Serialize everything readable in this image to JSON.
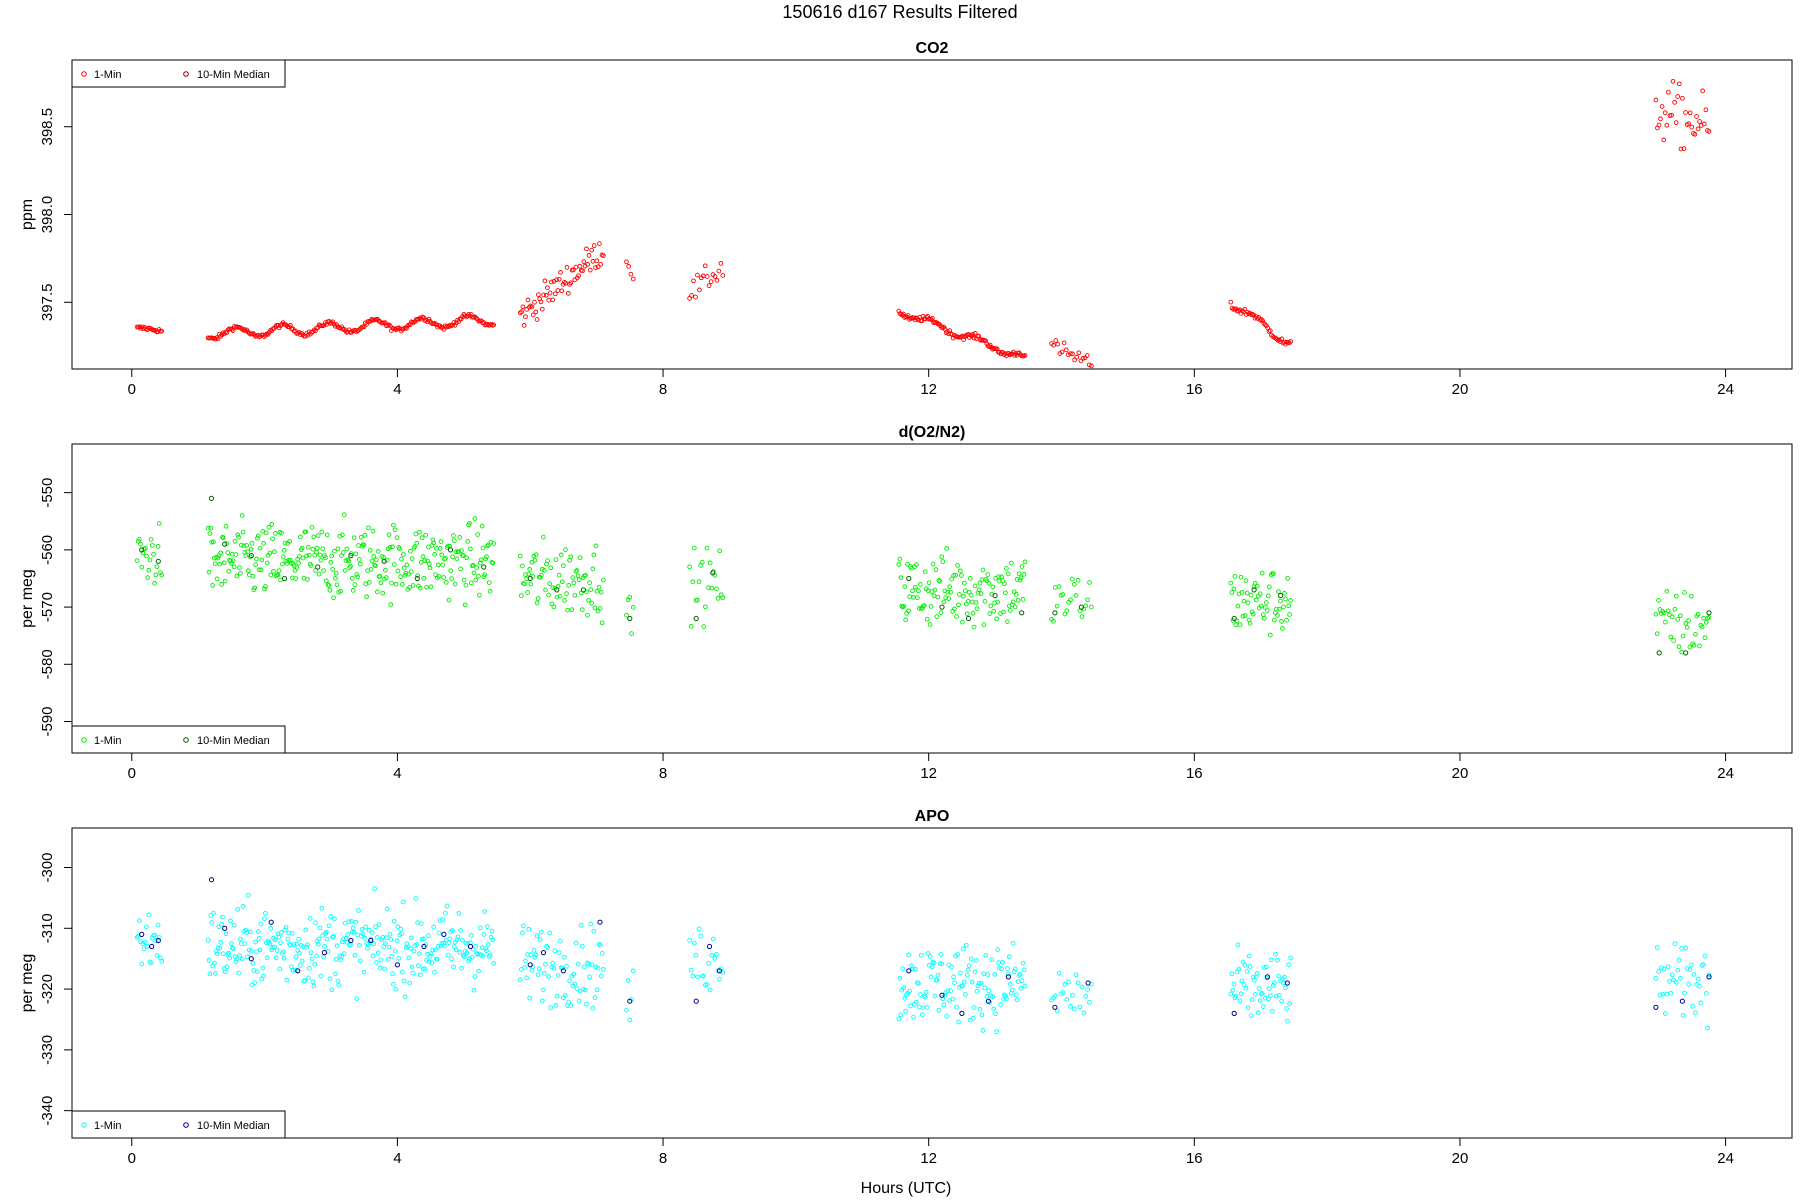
{
  "header": {
    "title": "150616   d167   Results Filtered"
  },
  "xaxis": {
    "label": "Hours (UTC)",
    "ticks": [
      0,
      4,
      8,
      12,
      16,
      20,
      24
    ],
    "range": [
      -0.9,
      25.0
    ]
  },
  "legend": {
    "label_1min": "1-Min",
    "label_median": "10-Min Median"
  },
  "chart_data": [
    {
      "type": "scatter",
      "title": "CO2",
      "ylabel": "ppm",
      "ylim": [
        397.12,
        398.88
      ],
      "yticks": [
        397.5,
        398.0,
        398.5
      ],
      "ytick_labels": [
        "397.5",
        "398.0",
        "398.5"
      ],
      "colors": {
        "one_min": "#ff0000",
        "median": "#8b0000"
      },
      "segments": [
        {
          "x": [
            0.08,
            0.45
          ],
          "y": [
            397.35,
            397.34
          ],
          "n": 20,
          "noise": 0.01,
          "wave": 0.005
        },
        {
          "x": [
            1.15,
            5.45
          ],
          "y": [
            397.32,
            397.4
          ],
          "n": 230,
          "noise": 0.01,
          "wave": 0.03
        },
        {
          "x": [
            5.85,
            7.1
          ],
          "y": [
            397.42,
            397.8
          ],
          "n": 65,
          "noise": 0.07,
          "wave": 0.0
        },
        {
          "x": [
            7.45,
            7.55
          ],
          "y": [
            397.73,
            397.65
          ],
          "n": 4,
          "noise": 0.02,
          "wave": 0.0
        },
        {
          "x": [
            8.4,
            8.9
          ],
          "y": [
            397.55,
            397.7
          ],
          "n": 18,
          "noise": 0.06,
          "wave": 0.0
        },
        {
          "x": [
            11.55,
            13.45
          ],
          "y": [
            397.45,
            397.18
          ],
          "n": 110,
          "noise": 0.012,
          "wave": 0.02
        },
        {
          "x": [
            13.85,
            14.45
          ],
          "y": [
            397.25,
            397.15
          ],
          "n": 20,
          "noise": 0.04,
          "wave": 0.0
        },
        {
          "x": [
            16.55,
            17.45
          ],
          "y": [
            397.5,
            397.26
          ],
          "n": 48,
          "noise": 0.015,
          "wave": 0.02
        },
        {
          "x": [
            22.95,
            23.75
          ],
          "y": [
            398.6,
            398.5
          ],
          "n": 35,
          "noise": 0.15,
          "wave": 0.0
        }
      ],
      "medians": []
    },
    {
      "type": "scatter",
      "title": "d(O2/N2)",
      "ylabel": "per meg",
      "ylim": [
        -595.5,
        -541.5
      ],
      "yticks": [
        -590,
        -580,
        -570,
        -560,
        -550
      ],
      "ytick_labels": [
        "-590",
        "-580",
        "-570",
        "-560",
        "-550"
      ],
      "colors": {
        "one_min": "#00ee00",
        "median": "#006400"
      },
      "segments": [
        {
          "x": [
            0.08,
            0.45
          ],
          "y": [
            -561,
            -561
          ],
          "n": 22,
          "noise": 4.5,
          "wave": 0
        },
        {
          "x": [
            1.15,
            5.45
          ],
          "y": [
            -562,
            -562
          ],
          "n": 320,
          "noise": 5.5,
          "wave": 0
        },
        {
          "x": [
            5.85,
            7.1
          ],
          "y": [
            -565,
            -565
          ],
          "n": 80,
          "noise": 5.5,
          "wave": 0
        },
        {
          "x": [
            7.45,
            7.55
          ],
          "y": [
            -572,
            -572
          ],
          "n": 5,
          "noise": 4,
          "wave": 0
        },
        {
          "x": [
            8.4,
            8.9
          ],
          "y": [
            -566,
            -566
          ],
          "n": 22,
          "noise": 5,
          "wave": 0
        },
        {
          "x": [
            11.55,
            13.45
          ],
          "y": [
            -567,
            -567
          ],
          "n": 130,
          "noise": 5.5,
          "wave": 0
        },
        {
          "x": [
            13.85,
            14.45
          ],
          "y": [
            -569,
            -569
          ],
          "n": 22,
          "noise": 4.5,
          "wave": 0
        },
        {
          "x": [
            16.55,
            17.45
          ],
          "y": [
            -569,
            -569
          ],
          "n": 60,
          "noise": 5,
          "wave": 0
        },
        {
          "x": [
            22.95,
            23.75
          ],
          "y": [
            -573,
            -573
          ],
          "n": 40,
          "noise": 5,
          "wave": 0
        }
      ],
      "medians": [
        {
          "x": 0.15,
          "y": -560
        },
        {
          "x": 0.4,
          "y": -562
        },
        {
          "x": 1.2,
          "y": -551
        },
        {
          "x": 1.4,
          "y": -559
        },
        {
          "x": 1.8,
          "y": -561
        },
        {
          "x": 2.3,
          "y": -565
        },
        {
          "x": 2.8,
          "y": -563
        },
        {
          "x": 3.3,
          "y": -561
        },
        {
          "x": 3.8,
          "y": -562
        },
        {
          "x": 4.3,
          "y": -565
        },
        {
          "x": 4.8,
          "y": -560
        },
        {
          "x": 5.3,
          "y": -563
        },
        {
          "x": 6.0,
          "y": -565
        },
        {
          "x": 6.4,
          "y": -567
        },
        {
          "x": 6.8,
          "y": -567
        },
        {
          "x": 7.5,
          "y": -572
        },
        {
          "x": 8.5,
          "y": -572
        },
        {
          "x": 8.75,
          "y": -564
        },
        {
          "x": 11.7,
          "y": -565
        },
        {
          "x": 12.2,
          "y": -570
        },
        {
          "x": 12.6,
          "y": -572
        },
        {
          "x": 13.0,
          "y": -568
        },
        {
          "x": 13.4,
          "y": -571
        },
        {
          "x": 13.9,
          "y": -571
        },
        {
          "x": 14.3,
          "y": -570
        },
        {
          "x": 16.6,
          "y": -572
        },
        {
          "x": 16.9,
          "y": -567
        },
        {
          "x": 17.3,
          "y": -568
        },
        {
          "x": 23.0,
          "y": -578
        },
        {
          "x": 23.4,
          "y": -578
        },
        {
          "x": 23.75,
          "y": -571
        }
      ]
    },
    {
      "type": "scatter",
      "title": "APO",
      "ylabel": "per meg",
      "ylim": [
        -344.5,
        -293.5
      ],
      "yticks": [
        -340,
        -330,
        -320,
        -310,
        -300
      ],
      "ytick_labels": [
        "-340",
        "-330",
        "-320",
        "-310",
        "-300"
      ],
      "colors": {
        "one_min": "#00ffff",
        "median": "#00008b"
      },
      "segments": [
        {
          "x": [
            0.08,
            0.45
          ],
          "y": [
            -312,
            -312
          ],
          "n": 22,
          "noise": 4.5,
          "wave": 0
        },
        {
          "x": [
            1.15,
            5.45
          ],
          "y": [
            -313,
            -313
          ],
          "n": 320,
          "noise": 5.5,
          "wave": 0
        },
        {
          "x": [
            5.85,
            7.1
          ],
          "y": [
            -316,
            -316
          ],
          "n": 80,
          "noise": 5.5,
          "wave": 0
        },
        {
          "x": [
            7.45,
            7.55
          ],
          "y": [
            -322,
            -322
          ],
          "n": 5,
          "noise": 4,
          "wave": 0
        },
        {
          "x": [
            8.4,
            8.9
          ],
          "y": [
            -315,
            -315
          ],
          "n": 22,
          "noise": 5,
          "wave": 0
        },
        {
          "x": [
            11.55,
            13.45
          ],
          "y": [
            -319,
            -319
          ],
          "n": 130,
          "noise": 5.5,
          "wave": 0
        },
        {
          "x": [
            13.85,
            14.45
          ],
          "y": [
            -321,
            -321
          ],
          "n": 22,
          "noise": 4.5,
          "wave": 0
        },
        {
          "x": [
            16.55,
            17.45
          ],
          "y": [
            -320,
            -320
          ],
          "n": 60,
          "noise": 5,
          "wave": 0
        },
        {
          "x": [
            22.95,
            23.75
          ],
          "y": [
            -319,
            -319
          ],
          "n": 40,
          "noise": 5,
          "wave": 0
        }
      ],
      "medians": [
        {
          "x": 0.15,
          "y": -311
        },
        {
          "x": 0.4,
          "y": -312
        },
        {
          "x": 0.3,
          "y": -313
        },
        {
          "x": 1.2,
          "y": -302
        },
        {
          "x": 1.4,
          "y": -310
        },
        {
          "x": 1.8,
          "y": -315
        },
        {
          "x": 2.1,
          "y": -309
        },
        {
          "x": 2.5,
          "y": -317
        },
        {
          "x": 2.9,
          "y": -314
        },
        {
          "x": 3.3,
          "y": -312
        },
        {
          "x": 3.6,
          "y": -312
        },
        {
          "x": 4.0,
          "y": -316
        },
        {
          "x": 4.4,
          "y": -313
        },
        {
          "x": 4.7,
          "y": -311
        },
        {
          "x": 5.1,
          "y": -313
        },
        {
          "x": 6.0,
          "y": -316
        },
        {
          "x": 6.2,
          "y": -314
        },
        {
          "x": 6.5,
          "y": -317
        },
        {
          "x": 7.05,
          "y": -309
        },
        {
          "x": 7.5,
          "y": -322
        },
        {
          "x": 8.5,
          "y": -322
        },
        {
          "x": 8.7,
          "y": -313
        },
        {
          "x": 8.85,
          "y": -317
        },
        {
          "x": 11.7,
          "y": -317
        },
        {
          "x": 12.2,
          "y": -321
        },
        {
          "x": 12.5,
          "y": -324
        },
        {
          "x": 12.9,
          "y": -322
        },
        {
          "x": 13.2,
          "y": -318
        },
        {
          "x": 13.9,
          "y": -323
        },
        {
          "x": 14.4,
          "y": -319
        },
        {
          "x": 16.6,
          "y": -324
        },
        {
          "x": 17.1,
          "y": -318
        },
        {
          "x": 17.4,
          "y": -319
        },
        {
          "x": 22.95,
          "y": -323
        },
        {
          "x": 23.35,
          "y": -322
        },
        {
          "x": 23.75,
          "y": -318
        }
      ]
    }
  ]
}
